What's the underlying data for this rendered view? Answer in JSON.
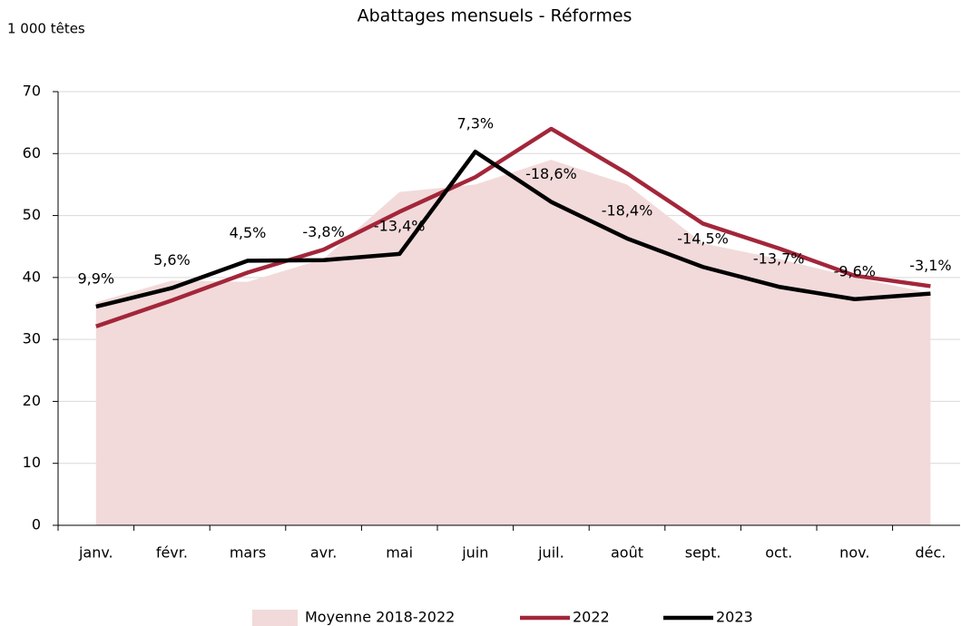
{
  "chart_data": {
    "type": "line",
    "title": "Abattages mensuels - Réformes",
    "y_label": "1 000 têtes",
    "categories": [
      "janv.",
      "févr.",
      "mars",
      "avr.",
      "mai",
      "juin",
      "juil.",
      "août",
      "sept.",
      "oct.",
      "nov.",
      "déc."
    ],
    "series": [
      {
        "name": "Moyenne 2018-2022",
        "kind": "area",
        "color": "#f2dada",
        "values": [
          36,
          39.5,
          39.3,
          43,
          53.8,
          55,
          59,
          55,
          45.5,
          43,
          40,
          37.5
        ]
      },
      {
        "name": "2022",
        "kind": "line",
        "color": "#a3263a",
        "values": [
          32.1,
          36.3,
          40.8,
          44.5,
          50.6,
          56.2,
          64.0,
          56.8,
          48.7,
          44.7,
          40.3,
          38.6
        ]
      },
      {
        "name": "2023",
        "kind": "line",
        "color": "#000000",
        "values": [
          35.3,
          38.3,
          42.7,
          42.8,
          43.8,
          60.3,
          52.2,
          46.3,
          41.7,
          38.5,
          36.5,
          37.4
        ]
      }
    ],
    "annotations": [
      "9,9%",
      "5,6%",
      "4,5%",
      "-3,8%",
      "-13,4%",
      "7,3%",
      "-18,6%",
      "-18,4%",
      "-14,5%",
      "-13,7%",
      "-9,6%",
      "-3,1%"
    ],
    "ylim": [
      0,
      70
    ],
    "yticks": [
      0,
      10,
      20,
      30,
      40,
      50,
      60,
      70
    ],
    "grid": true
  }
}
